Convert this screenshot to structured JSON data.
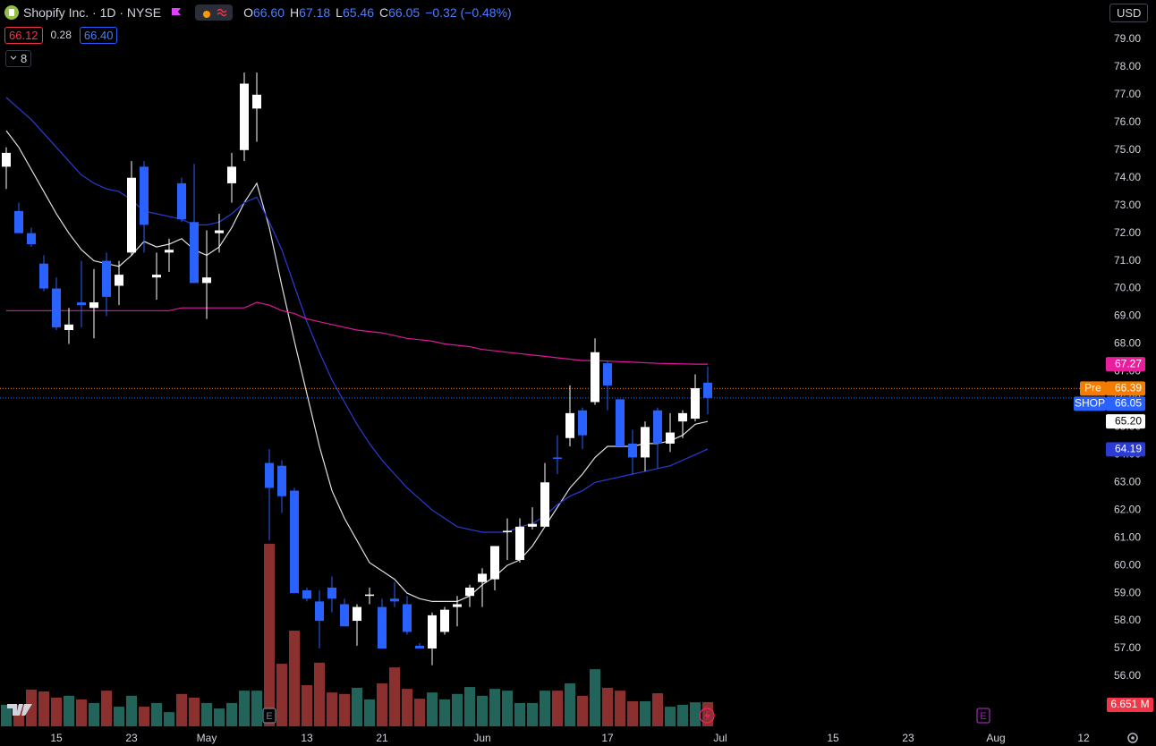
{
  "header": {
    "symbol": "Shopify Inc. · 1D · NYSE",
    "ohlc": [
      {
        "key": "O",
        "value": "66.60"
      },
      {
        "key": "H",
        "value": "67.18"
      },
      {
        "key": "L",
        "value": "65.46"
      },
      {
        "key": "C",
        "value": "66.05"
      }
    ],
    "change": "−0.32 (−0.48%)",
    "bid": "66.12",
    "spread": "0.28",
    "ask": "66.40",
    "indicators_count": "8",
    "currency": "USD"
  },
  "chart_data": {
    "type": "candlestick",
    "xlim": [
      -0.5,
      87.5
    ],
    "xticks": [
      {
        "value": 4,
        "label": "15"
      },
      {
        "value": 10,
        "label": "23"
      },
      {
        "value": 16,
        "label": "May"
      },
      {
        "value": 24,
        "label": "13"
      },
      {
        "value": 30,
        "label": "21"
      },
      {
        "value": 38,
        "label": "Jun"
      },
      {
        "value": 48,
        "label": "17"
      },
      {
        "value": 57,
        "label": "Jul"
      },
      {
        "value": 66,
        "label": "15"
      },
      {
        "value": 72,
        "label": "23"
      },
      {
        "value": 79,
        "label": "Aug"
      },
      {
        "value": 86,
        "label": "12"
      }
    ],
    "ylim": [
      54.19,
      80.42
    ],
    "yticks": [
      {
        "value": 56,
        "label": "56.00"
      },
      {
        "value": 57,
        "label": "57.00"
      },
      {
        "value": 58,
        "label": "58.00"
      },
      {
        "value": 59,
        "label": "59.00"
      },
      {
        "value": 60,
        "label": "60.00"
      },
      {
        "value": 61,
        "label": "61.00"
      },
      {
        "value": 62,
        "label": "62.00"
      },
      {
        "value": 63,
        "label": "63.00"
      },
      {
        "value": 64,
        "label": "64.00"
      },
      {
        "value": 65,
        "label": "65.00"
      },
      {
        "value": 66,
        "label": "66.00"
      },
      {
        "value": 67,
        "label": "67.00"
      },
      {
        "value": 68,
        "label": "68.00"
      },
      {
        "value": 69,
        "label": "69.00"
      },
      {
        "value": 70,
        "label": "70.00"
      },
      {
        "value": 71,
        "label": "71.00"
      },
      {
        "value": 72,
        "label": "72.00"
      },
      {
        "value": 73,
        "label": "73.00"
      },
      {
        "value": 74,
        "label": "74.00"
      },
      {
        "value": 75,
        "label": "75.00"
      },
      {
        "value": 76,
        "label": "76.00"
      },
      {
        "value": 77,
        "label": "77.00"
      },
      {
        "value": 78,
        "label": "78.00"
      },
      {
        "value": 79,
        "label": "79.00"
      }
    ],
    "grid": false,
    "up_color": "#ffffff",
    "down_color": "#2962ff",
    "open": [
      74.4,
      72.8,
      72.0,
      70.9,
      70.0,
      68.5,
      69.5,
      69.3,
      71.0,
      70.1,
      71.3,
      74.4,
      70.4,
      71.3,
      73.8,
      72.4,
      70.2,
      72.0,
      73.8,
      75.0,
      76.5,
      63.7,
      63.6,
      62.7,
      59.1,
      58.7,
      59.2,
      58.6,
      58.0,
      58.9,
      58.5,
      58.8,
      58.6,
      57.1,
      57.0,
      57.6,
      58.5,
      58.9,
      59.4,
      59.5,
      61.2,
      60.2,
      61.4,
      61.4,
      63.9,
      64.6,
      65.6,
      65.9,
      67.3,
      66.0,
      64.4,
      63.9,
      65.6,
      64.4,
      65.2,
      65.3,
      66.6
    ],
    "high": [
      75.1,
      73.1,
      72.2,
      71.2,
      70.4,
      69.3,
      71.0,
      70.7,
      71.3,
      71.0,
      74.6,
      74.6,
      71.3,
      71.8,
      74.0,
      74.5,
      72.1,
      72.7,
      74.9,
      77.8,
      77.8,
      64.2,
      63.8,
      62.8,
      59.2,
      59.1,
      59.6,
      58.8,
      58.6,
      59.2,
      58.8,
      59.4,
      58.9,
      57.2,
      58.3,
      58.5,
      58.9,
      59.3,
      59.9,
      60.7,
      61.7,
      61.7,
      62.1,
      63.7,
      64.7,
      66.5,
      65.7,
      68.2,
      67.4,
      66.0,
      64.9,
      65.2,
      65.7,
      65.5,
      65.6,
      66.9,
      67.18
    ],
    "low": [
      73.6,
      72.0,
      71.5,
      69.9,
      68.5,
      68.0,
      68.6,
      68.2,
      69.0,
      69.4,
      71.2,
      71.3,
      69.6,
      70.6,
      72.4,
      70.2,
      68.9,
      71.3,
      73.1,
      74.6,
      75.3,
      60.9,
      61.9,
      59.0,
      58.7,
      57.0,
      58.3,
      57.8,
      57.1,
      58.6,
      57.0,
      58.5,
      57.5,
      57.0,
      56.4,
      57.5,
      57.8,
      58.5,
      58.5,
      59.1,
      60.2,
      60.1,
      61.3,
      61.4,
      63.3,
      64.3,
      64.2,
      65.8,
      65.6,
      64.3,
      63.3,
      63.4,
      63.5,
      64.1,
      64.6,
      65.2,
      65.46
    ],
    "close": [
      74.9,
      72.0,
      71.6,
      70.0,
      68.6,
      68.7,
      69.4,
      69.5,
      69.7,
      70.5,
      74.0,
      72.3,
      70.5,
      71.4,
      72.5,
      70.2,
      70.4,
      72.1,
      74.4,
      77.4,
      77.0,
      62.8,
      62.5,
      59.0,
      58.8,
      58.0,
      58.8,
      57.8,
      58.5,
      58.95,
      57.0,
      58.7,
      57.6,
      57.0,
      58.2,
      58.4,
      58.6,
      59.2,
      59.7,
      60.7,
      61.25,
      61.4,
      61.5,
      63.0,
      63.85,
      65.5,
      64.7,
      67.7,
      66.5,
      64.3,
      63.9,
      65.0,
      64.4,
      64.8,
      65.5,
      66.4,
      66.05
    ],
    "lines": [
      {
        "color": "#e0e0e0",
        "values": [
          75.7,
          75.1,
          74.3,
          73.5,
          72.7,
          72.0,
          71.4,
          71.0,
          70.9,
          70.8,
          71.2,
          71.7,
          71.5,
          71.6,
          71.8,
          71.4,
          71.2,
          71.5,
          72.2,
          73.1,
          73.8,
          72.2,
          70.1,
          68.1,
          66.2,
          64.3,
          62.7,
          61.7,
          60.9,
          60.1,
          59.8,
          59.5,
          59.0,
          58.8,
          58.7,
          58.7,
          58.7,
          58.9,
          59.3,
          59.6,
          60.0,
          60.2,
          60.7,
          61.4,
          62.1,
          62.8,
          63.3,
          63.9,
          64.3,
          64.3,
          64.3,
          64.4,
          64.4,
          64.5,
          64.7,
          65.1,
          65.2
        ]
      },
      {
        "color": "#2b3bd6",
        "values": [
          76.9,
          76.5,
          76.1,
          75.6,
          75.1,
          74.6,
          74.1,
          73.8,
          73.6,
          73.5,
          73.2,
          72.8,
          72.7,
          72.6,
          72.5,
          72.3,
          72.3,
          72.4,
          72.7,
          73.1,
          73.3,
          72.4,
          71.4,
          70.1,
          68.8,
          67.7,
          66.7,
          65.9,
          65.1,
          64.4,
          63.8,
          63.3,
          62.8,
          62.4,
          62.0,
          61.7,
          61.4,
          61.3,
          61.2,
          61.2,
          61.2,
          61.4,
          61.5,
          61.8,
          62.2,
          62.5,
          62.7,
          63.0,
          63.1,
          63.2,
          63.3,
          63.4,
          63.5,
          63.6,
          63.8,
          64.0,
          64.2
        ]
      },
      {
        "color": "#e0179e",
        "values": [
          69.2,
          69.2,
          69.2,
          69.2,
          69.2,
          69.2,
          69.2,
          69.2,
          69.2,
          69.2,
          69.2,
          69.2,
          69.2,
          69.2,
          69.3,
          69.3,
          69.3,
          69.3,
          69.3,
          69.3,
          69.5,
          69.4,
          69.2,
          69.1,
          68.9,
          68.8,
          68.7,
          68.6,
          68.5,
          68.45,
          68.4,
          68.3,
          68.2,
          68.15,
          68.1,
          68.0,
          67.95,
          67.9,
          67.8,
          67.75,
          67.7,
          67.65,
          67.6,
          67.55,
          67.5,
          67.45,
          67.4,
          67.4,
          67.38,
          67.36,
          67.34,
          67.32,
          67.3,
          67.29,
          67.28,
          67.27,
          67.27
        ]
      }
    ],
    "volume": {
      "ylim": [
        0,
        60
      ],
      "up_color": "#22645a",
      "down_color": "#8a302e",
      "label": "6.651 M",
      "label_color": "#f23645",
      "values": [
        5.9,
        5.9,
        10.1,
        9.6,
        7.9,
        8.4,
        7.4,
        6.4,
        9.8,
        5.4,
        8.4,
        5.4,
        6.4,
        3.9,
        8.9,
        7.9,
        6.4,
        4.9,
        6.4,
        9.8,
        9.8,
        50.2,
        17.2,
        26.3,
        11.3,
        17.5,
        9.3,
        8.9,
        10.6,
        7.4,
        11.8,
        16.2,
        10.3,
        7.6,
        9.3,
        7.4,
        8.9,
        10.8,
        8.4,
        10.3,
        9.8,
        6.4,
        6.4,
        9.8,
        9.8,
        11.8,
        8.4,
        15.7,
        10.6,
        9.8,
        6.9,
        6.9,
        9.1,
        5.4,
        5.9,
        6.6,
        6.651
      ]
    },
    "price_labels": [
      {
        "value": 67.27,
        "label": "67.27",
        "color": "#e91e9c",
        "text_color": "#ffffff"
      },
      {
        "tag": "Pre",
        "value": 66.39,
        "label": "66.39",
        "color": "#f57c00",
        "text_color": "#ffffff",
        "dotted_line": true
      },
      {
        "tag": "SHOP",
        "value": 66.05,
        "label": "66.05",
        "color": "#2962ff",
        "text_color": "#ffffff",
        "dotted_line": true
      },
      {
        "value": 65.2,
        "label": "65.20",
        "color": "#ffffff",
        "text_color": "#000000"
      },
      {
        "value": 64.19,
        "label": "64.19",
        "color": "#2b3bd6",
        "text_color": "#ffffff"
      }
    ],
    "earnings": [
      {
        "value": 21,
        "label": "E",
        "color": "#787b86"
      },
      {
        "value": 78,
        "label": "E",
        "color": "#9c27b0"
      }
    ]
  }
}
